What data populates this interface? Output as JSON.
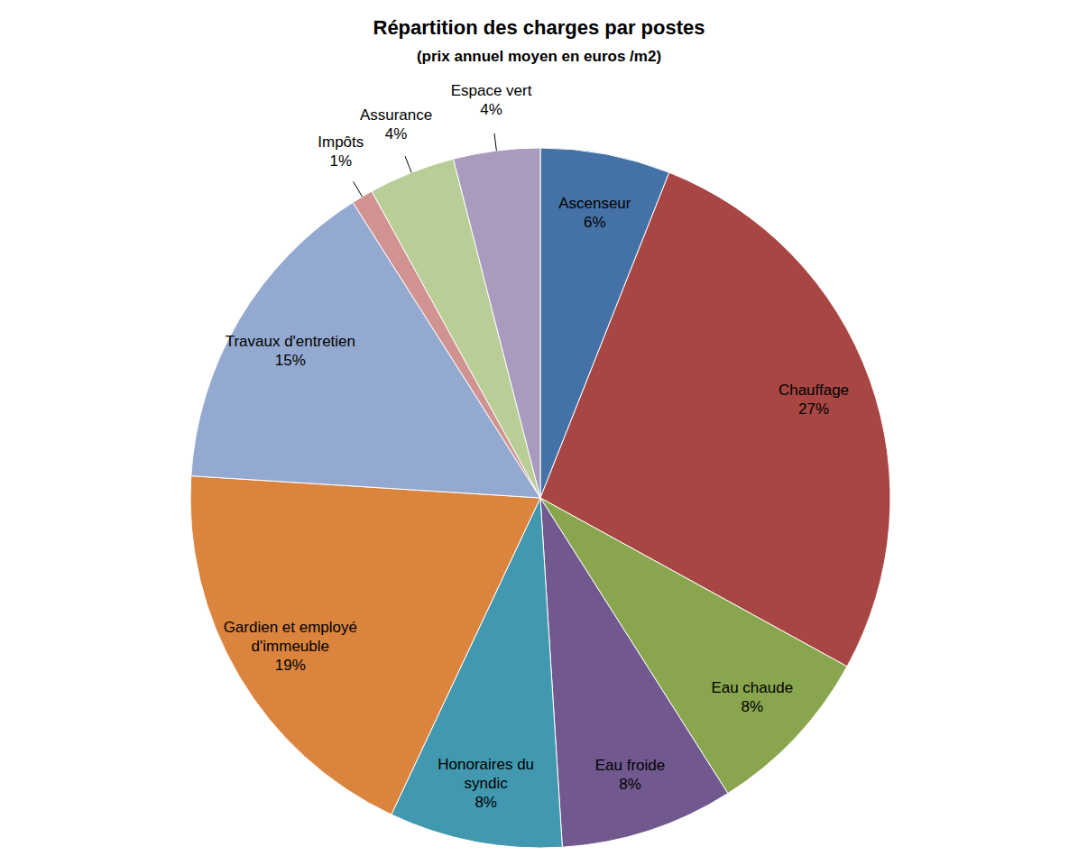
{
  "chart_data": {
    "type": "pie",
    "title": "Répartition des charges par postes",
    "subtitle": "(prix annuel moyen en euros /m2)",
    "categories": [
      "Ascenseur",
      "Chauffage",
      "Eau chaude",
      "Eau froide",
      "Honoraires du syndic",
      "Gardien et employé d'immeuble",
      "Travaux d'entretien",
      "Impôts",
      "Assurance",
      "Espace vert"
    ],
    "values": [
      6,
      27,
      8,
      8,
      8,
      19,
      15,
      1,
      4,
      4
    ],
    "value_labels": [
      "6%",
      "27%",
      "8%",
      "8%",
      "8%",
      "19%",
      "15%",
      "1%",
      "4%",
      "4%"
    ],
    "colors": [
      "#4572a6",
      "#a84644",
      "#89a54e",
      "#71588f",
      "#4198af",
      "#db843d",
      "#93a9cf",
      "#d19392",
      "#b9cd96",
      "#a99bbd"
    ],
    "data_labels": true
  }
}
